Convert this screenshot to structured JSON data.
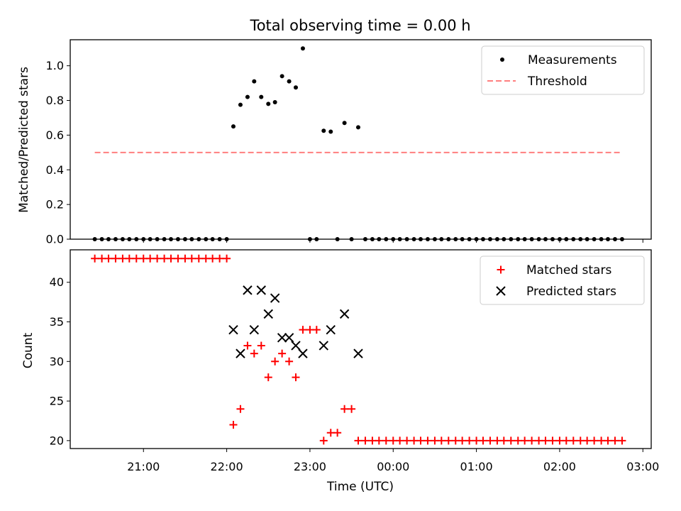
{
  "chart_data": [
    {
      "type": "scatter",
      "title": "Total observing time = 0.00 h",
      "ylabel": "Matched/Predicted stars",
      "xlabel": "",
      "ylim": [
        0,
        1.15
      ],
      "yticks": [
        0.0,
        0.2,
        0.4,
        0.6,
        0.8,
        1.0
      ],
      "ytick_labels": [
        "0.0",
        "0.2",
        "0.4",
        "0.6",
        "0.8",
        "1.0"
      ],
      "x_unit": "hours since 00:00 UTC",
      "xlim": [
        -3.88,
        3.1
      ],
      "legend_position": "top-right",
      "legend": [
        "Measurements",
        "Threshold"
      ],
      "series": [
        {
          "name": "Measurements",
          "marker": "dot",
          "color": "#000000",
          "points": [
            [
              -3.585,
              0
            ],
            [
              -3.5,
              0
            ],
            [
              -3.42,
              0
            ],
            [
              -3.335,
              0
            ],
            [
              -3.25,
              0
            ],
            [
              -3.17,
              0
            ],
            [
              -3.085,
              0
            ],
            [
              -3.0,
              0
            ],
            [
              -2.92,
              0
            ],
            [
              -2.835,
              0
            ],
            [
              -2.75,
              0
            ],
            [
              -2.67,
              0
            ],
            [
              -2.585,
              0
            ],
            [
              -2.5,
              0
            ],
            [
              -2.42,
              0
            ],
            [
              -2.335,
              0
            ],
            [
              -2.25,
              0
            ],
            [
              -2.17,
              0
            ],
            [
              -2.085,
              0
            ],
            [
              -2.0,
              0
            ],
            [
              -1.92,
              0.65
            ],
            [
              -1.835,
              0.775
            ],
            [
              -1.75,
              0.82
            ],
            [
              -1.67,
              0.91
            ],
            [
              -1.585,
              0.82
            ],
            [
              -1.5,
              0.78
            ],
            [
              -1.42,
              0.79
            ],
            [
              -1.335,
              0.94
            ],
            [
              -1.25,
              0.91
            ],
            [
              -1.17,
              0.875
            ],
            [
              -1.085,
              1.1
            ],
            [
              -1.0,
              0
            ],
            [
              -0.92,
              0
            ],
            [
              -0.835,
              0.625
            ],
            [
              -0.75,
              0.62
            ],
            [
              -0.67,
              0
            ],
            [
              -0.585,
              0.67
            ],
            [
              -0.5,
              0
            ],
            [
              -0.42,
              0.645
            ],
            [
              -0.335,
              0
            ],
            [
              -0.25,
              0
            ],
            [
              -0.17,
              0
            ],
            [
              -0.085,
              0
            ],
            [
              0.0,
              0
            ],
            [
              0.08,
              0
            ],
            [
              0.165,
              0
            ],
            [
              0.25,
              0
            ],
            [
              0.33,
              0
            ],
            [
              0.415,
              0
            ],
            [
              0.5,
              0
            ],
            [
              0.58,
              0
            ],
            [
              0.665,
              0
            ],
            [
              0.75,
              0
            ],
            [
              0.83,
              0
            ],
            [
              0.915,
              0
            ],
            [
              1.0,
              0
            ],
            [
              1.08,
              0
            ],
            [
              1.165,
              0
            ],
            [
              1.25,
              0
            ],
            [
              1.33,
              0
            ],
            [
              1.415,
              0
            ],
            [
              1.5,
              0
            ],
            [
              1.58,
              0
            ],
            [
              1.665,
              0
            ],
            [
              1.75,
              0
            ],
            [
              1.83,
              0
            ],
            [
              1.915,
              0
            ],
            [
              2.0,
              0
            ],
            [
              2.08,
              0
            ],
            [
              2.165,
              0
            ],
            [
              2.25,
              0
            ],
            [
              2.33,
              0
            ],
            [
              2.415,
              0
            ],
            [
              2.5,
              0
            ],
            [
              2.58,
              0
            ],
            [
              2.665,
              0
            ],
            [
              2.75,
              0
            ]
          ]
        },
        {
          "name": "Threshold",
          "style": "dashed",
          "color": "#ff7f7f",
          "points": [
            [
              -3.585,
              0.5
            ],
            [
              2.75,
              0.5
            ]
          ]
        }
      ]
    },
    {
      "type": "scatter",
      "title": "",
      "ylabel": "Count",
      "xlabel": "Time (UTC)",
      "ylim": [
        19,
        44.1
      ],
      "yticks": [
        20,
        25,
        30,
        35,
        40
      ],
      "ytick_labels": [
        "20",
        "25",
        "30",
        "35",
        "40"
      ],
      "x_unit": "hours since 00:00 UTC",
      "xlim": [
        -3.88,
        3.1
      ],
      "xticks": [
        -3,
        -2,
        -1,
        0,
        1,
        2,
        3
      ],
      "xtick_labels": [
        "21:00",
        "22:00",
        "23:00",
        "00:00",
        "01:00",
        "02:00",
        "03:00"
      ],
      "legend_position": "top-right",
      "legend": [
        "Matched stars",
        "Predicted stars"
      ],
      "series": [
        {
          "name": "Matched stars",
          "marker": "plus",
          "color": "#ff0000",
          "points": [
            [
              -3.585,
              43
            ],
            [
              -3.5,
              43
            ],
            [
              -3.42,
              43
            ],
            [
              -3.335,
              43
            ],
            [
              -3.25,
              43
            ],
            [
              -3.17,
              43
            ],
            [
              -3.085,
              43
            ],
            [
              -3.0,
              43
            ],
            [
              -2.92,
              43
            ],
            [
              -2.835,
              43
            ],
            [
              -2.75,
              43
            ],
            [
              -2.67,
              43
            ],
            [
              -2.585,
              43
            ],
            [
              -2.5,
              43
            ],
            [
              -2.42,
              43
            ],
            [
              -2.335,
              43
            ],
            [
              -2.25,
              43
            ],
            [
              -2.17,
              43
            ],
            [
              -2.085,
              43
            ],
            [
              -2.0,
              43
            ],
            [
              -1.92,
              22
            ],
            [
              -1.835,
              24
            ],
            [
              -1.75,
              32
            ],
            [
              -1.67,
              31
            ],
            [
              -1.585,
              32
            ],
            [
              -1.5,
              28
            ],
            [
              -1.42,
              30
            ],
            [
              -1.335,
              31
            ],
            [
              -1.25,
              30
            ],
            [
              -1.17,
              28
            ],
            [
              -1.085,
              34
            ],
            [
              -1.0,
              34
            ],
            [
              -0.92,
              34
            ],
            [
              -0.835,
              20
            ],
            [
              -0.75,
              21
            ],
            [
              -0.67,
              21
            ],
            [
              -0.585,
              24
            ],
            [
              -0.5,
              24
            ],
            [
              -0.42,
              20
            ],
            [
              -0.335,
              20
            ],
            [
              -0.25,
              20
            ],
            [
              -0.17,
              20
            ],
            [
              -0.085,
              20
            ],
            [
              0.0,
              20
            ],
            [
              0.08,
              20
            ],
            [
              0.165,
              20
            ],
            [
              0.25,
              20
            ],
            [
              0.33,
              20
            ],
            [
              0.415,
              20
            ],
            [
              0.5,
              20
            ],
            [
              0.58,
              20
            ],
            [
              0.665,
              20
            ],
            [
              0.75,
              20
            ],
            [
              0.83,
              20
            ],
            [
              0.915,
              20
            ],
            [
              1.0,
              20
            ],
            [
              1.08,
              20
            ],
            [
              1.165,
              20
            ],
            [
              1.25,
              20
            ],
            [
              1.33,
              20
            ],
            [
              1.415,
              20
            ],
            [
              1.5,
              20
            ],
            [
              1.58,
              20
            ],
            [
              1.665,
              20
            ],
            [
              1.75,
              20
            ],
            [
              1.83,
              20
            ],
            [
              1.915,
              20
            ],
            [
              2.0,
              20
            ],
            [
              2.08,
              20
            ],
            [
              2.165,
              20
            ],
            [
              2.25,
              20
            ],
            [
              2.33,
              20
            ],
            [
              2.415,
              20
            ],
            [
              2.5,
              20
            ],
            [
              2.58,
              20
            ],
            [
              2.665,
              20
            ],
            [
              2.75,
              20
            ]
          ]
        },
        {
          "name": "Predicted stars",
          "marker": "x",
          "color": "#000000",
          "points": [
            [
              -1.92,
              34
            ],
            [
              -1.835,
              31
            ],
            [
              -1.75,
              39
            ],
            [
              -1.67,
              34
            ],
            [
              -1.585,
              39
            ],
            [
              -1.5,
              36
            ],
            [
              -1.42,
              38
            ],
            [
              -1.335,
              33
            ],
            [
              -1.25,
              33
            ],
            [
              -1.17,
              32
            ],
            [
              -1.085,
              31
            ],
            [
              -0.835,
              32
            ],
            [
              -0.75,
              34
            ],
            [
              -0.585,
              36
            ],
            [
              -0.42,
              31
            ]
          ]
        }
      ]
    }
  ]
}
